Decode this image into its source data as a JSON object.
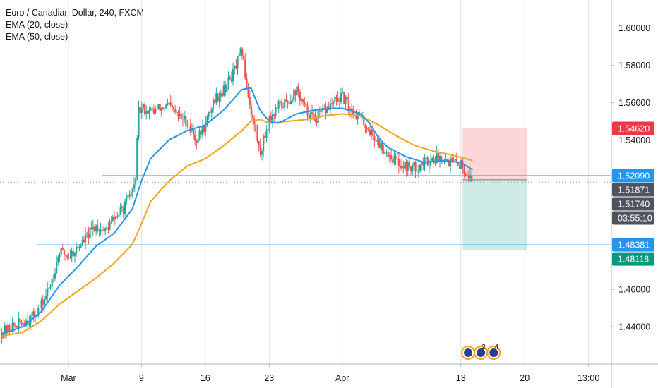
{
  "chart_data": {
    "type": "candlestick",
    "title": "Euro / Canadian Dollar, 240, FXCM",
    "indicators": [
      "EMA (20, close)",
      "EMA (50, close)"
    ],
    "y_range": [
      1.42,
      1.615
    ],
    "y_ticks": [
      "1.60000",
      "1.58000",
      "1.56000",
      "1.54000",
      "1.46000",
      "1.44000"
    ],
    "y_tick_values": [
      1.6,
      1.58,
      1.56,
      1.54,
      1.46,
      1.44
    ],
    "x_tick_labels": [
      "Mar",
      "9",
      "16",
      "23",
      "Apr",
      "13",
      "20",
      "13:00"
    ],
    "x_tick_days": [
      1,
      9,
      16,
      23,
      31,
      44,
      51,
      58
    ],
    "day_range": [
      -6.5,
      60.5
    ],
    "candles_start_day": -6.3,
    "candles_end_day": 45.3,
    "price_path": [
      [
        -6.3,
        1.437
      ],
      [
        -3,
        1.445
      ],
      [
        -2,
        1.451
      ],
      [
        -1,
        1.462
      ],
      [
        0,
        1.48
      ],
      [
        1,
        1.478
      ],
      [
        2,
        1.482
      ],
      [
        3,
        1.488
      ],
      [
        4,
        1.494
      ],
      [
        5,
        1.491
      ],
      [
        6,
        1.498
      ],
      [
        7,
        1.503
      ],
      [
        8,
        1.513
      ],
      [
        8.3,
        1.515
      ],
      [
        8.7,
        1.555
      ],
      [
        9.2,
        1.557
      ],
      [
        10,
        1.555
      ],
      [
        11,
        1.557
      ],
      [
        12,
        1.558
      ],
      [
        13,
        1.553
      ],
      [
        14,
        1.55
      ],
      [
        15,
        1.54
      ],
      [
        16,
        1.548
      ],
      [
        17,
        1.562
      ],
      [
        18,
        1.567
      ],
      [
        19,
        1.575
      ],
      [
        20,
        1.588
      ],
      [
        20.5,
        1.57
      ],
      [
        21,
        1.556
      ],
      [
        22,
        1.533
      ],
      [
        23,
        1.551
      ],
      [
        24,
        1.558
      ],
      [
        25,
        1.56
      ],
      [
        26,
        1.567
      ],
      [
        27,
        1.556
      ],
      [
        28,
        1.551
      ],
      [
        29,
        1.555
      ],
      [
        30,
        1.56
      ],
      [
        31,
        1.563
      ],
      [
        32,
        1.556
      ],
      [
        33,
        1.552
      ],
      [
        34,
        1.545
      ],
      [
        35,
        1.538
      ],
      [
        36,
        1.533
      ],
      [
        37,
        1.528
      ],
      [
        38,
        1.526
      ],
      [
        39,
        1.525
      ],
      [
        40,
        1.528
      ],
      [
        41,
        1.53
      ],
      [
        42,
        1.531
      ],
      [
        43,
        1.528
      ],
      [
        44,
        1.527
      ],
      [
        45,
        1.52
      ],
      [
        45.3,
        1.5174
      ]
    ],
    "ema20": [
      [
        -6.3,
        1.436
      ],
      [
        -4,
        1.44
      ],
      [
        -2,
        1.448
      ],
      [
        0,
        1.462
      ],
      [
        2,
        1.472
      ],
      [
        4,
        1.483
      ],
      [
        6,
        1.49
      ],
      [
        8,
        1.503
      ],
      [
        9,
        1.518
      ],
      [
        10,
        1.53
      ],
      [
        12,
        1.54
      ],
      [
        14,
        1.545
      ],
      [
        16,
        1.548
      ],
      [
        18,
        1.556
      ],
      [
        20,
        1.567
      ],
      [
        21,
        1.568
      ],
      [
        22,
        1.556
      ],
      [
        23,
        1.55
      ],
      [
        24,
        1.549
      ],
      [
        26,
        1.554
      ],
      [
        28,
        1.556
      ],
      [
        30,
        1.557
      ],
      [
        31,
        1.557
      ],
      [
        33,
        1.554
      ],
      [
        34,
        1.549
      ],
      [
        35,
        1.541
      ],
      [
        36,
        1.536
      ],
      [
        38,
        1.531
      ],
      [
        40,
        1.528
      ],
      [
        42,
        1.529
      ],
      [
        44,
        1.528
      ],
      [
        45.3,
        1.524
      ]
    ],
    "ema50": [
      [
        -6.3,
        1.435
      ],
      [
        -4,
        1.437
      ],
      [
        -2,
        1.443
      ],
      [
        0,
        1.452
      ],
      [
        2,
        1.459
      ],
      [
        4,
        1.466
      ],
      [
        6,
        1.474
      ],
      [
        8,
        1.484
      ],
      [
        9,
        1.495
      ],
      [
        10,
        1.507
      ],
      [
        12,
        1.518
      ],
      [
        14,
        1.526
      ],
      [
        16,
        1.53
      ],
      [
        18,
        1.537
      ],
      [
        20,
        1.545
      ],
      [
        21,
        1.55
      ],
      [
        22,
        1.551
      ],
      [
        23,
        1.549
      ],
      [
        25,
        1.55
      ],
      [
        27,
        1.551
      ],
      [
        29,
        1.553
      ],
      [
        31,
        1.554
      ],
      [
        33,
        1.553
      ],
      [
        35,
        1.548
      ],
      [
        37,
        1.542
      ],
      [
        39,
        1.537
      ],
      [
        41,
        1.534
      ],
      [
        43,
        1.532
      ],
      [
        45.3,
        1.529
      ]
    ],
    "horizontal_lines": [
      {
        "value": 1.5209,
        "from_day": 4.7
      },
      {
        "value": 1.48381,
        "from_day": -2.5
      }
    ],
    "current_price_line": 1.5174,
    "position": {
      "type": "short",
      "from_day": 44.2,
      "to_day": 51.3,
      "entry": 1.5187,
      "stop": 1.5462,
      "target": 1.48118
    },
    "price_labels": [
      {
        "text": "1.54620",
        "value": 1.5462,
        "bg": "#f23645",
        "fg": "#ffffff"
      },
      {
        "text": "1.52090",
        "value": 1.5209,
        "bg": "#2196f3",
        "fg": "#ffffff"
      },
      {
        "text": "1.51871",
        "value": 1.51871,
        "bg": "#50535e",
        "fg": "#ffffff"
      },
      {
        "text": "1.51740",
        "value": 1.5174,
        "bg": "#50535e",
        "fg": "#ffffff"
      },
      {
        "text": "03:55:10",
        "value": 1.5135,
        "bg": "#50535e",
        "fg": "#ffffff"
      },
      {
        "text": "1.48381",
        "value": 1.48381,
        "bg": "#2196f3",
        "fg": "#ffffff"
      },
      {
        "text": "1.48118",
        "value": 1.48118,
        "bg": "#089981",
        "fg": "#ffffff"
      }
    ],
    "event_markers": [
      {
        "day": 44.8,
        "text": ""
      },
      {
        "day": 46.2,
        "text": "2"
      },
      {
        "day": 47.6,
        "text": "4"
      }
    ],
    "colors": {
      "up": "#26a69a",
      "down": "#ef5350",
      "ema20": "#2196f3",
      "ema50": "#f7a21b",
      "hline": "#2196f3",
      "stop_zone": "#f23645",
      "target_zone": "#089981",
      "grid": "#e0e3eb",
      "axis_text": "#131722"
    }
  }
}
